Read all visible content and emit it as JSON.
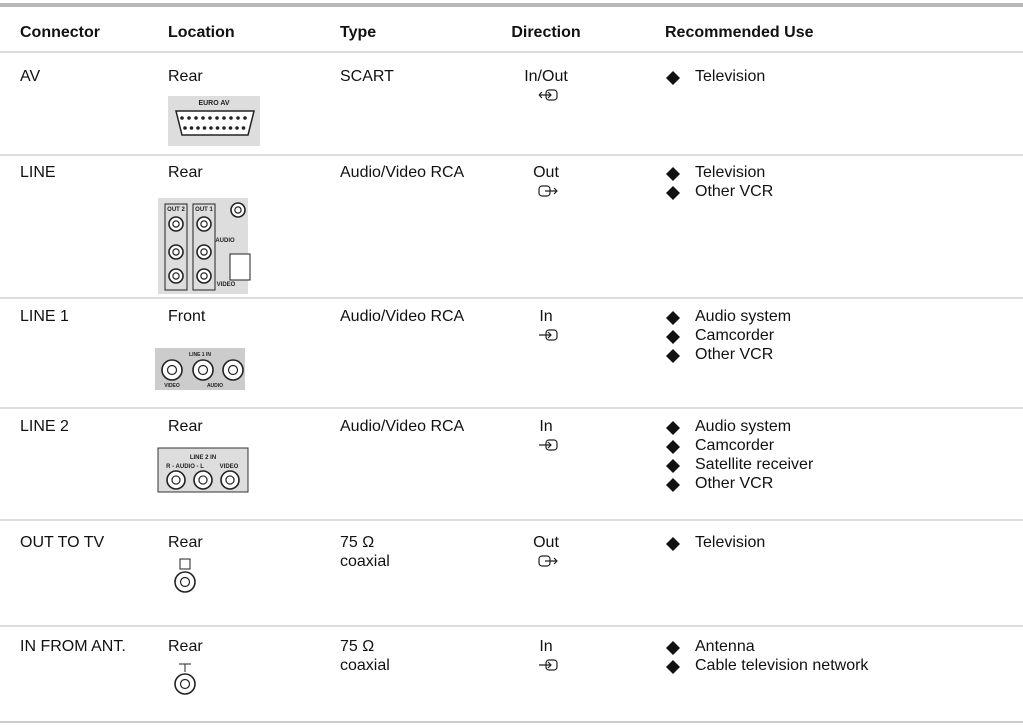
{
  "table": {
    "columns": [
      "Connector",
      "Location",
      "Type",
      "Direction",
      "Recommended Use"
    ],
    "rows": [
      {
        "connector": "AV",
        "location": "Rear",
        "type": [
          "SCART"
        ],
        "direction": "In/Out",
        "uses": [
          "Television"
        ],
        "figure_labels": [
          "EURO AV"
        ]
      },
      {
        "connector": "LINE",
        "location": "Rear",
        "type": [
          "Audio/Video RCA"
        ],
        "direction": "Out",
        "uses": [
          "Television",
          "Other VCR"
        ],
        "figure_labels": [
          "OUT 2",
          "OUT 1",
          "AUDIO",
          "VIDEO"
        ]
      },
      {
        "connector": "LINE 1",
        "location": "Front",
        "type": [
          "Audio/Video RCA"
        ],
        "direction": "In",
        "uses": [
          "Audio system",
          "Camcorder",
          "Other VCR"
        ],
        "figure_labels": [
          "LINE 1 IN",
          "VIDEO",
          "AUDIO"
        ]
      },
      {
        "connector": "LINE 2",
        "location": "Rear",
        "type": [
          "Audio/Video RCA"
        ],
        "direction": "In",
        "uses": [
          "Audio system",
          "Camcorder",
          "Satellite receiver",
          "Other VCR"
        ],
        "figure_labels": [
          "LINE 2 IN",
          "R - AUDIO - L",
          "VIDEO"
        ]
      },
      {
        "connector": "OUT TO TV",
        "location": "Rear",
        "type": [
          "75 Ω",
          "coaxial"
        ],
        "direction": "Out",
        "uses": [
          "Television"
        ],
        "figure_labels": []
      },
      {
        "connector": "IN FROM ANT.",
        "location": "Rear",
        "type": [
          "75 Ω",
          "coaxial"
        ],
        "direction": "In",
        "uses": [
          "Antenna",
          "Cable television network"
        ],
        "figure_labels": []
      }
    ]
  }
}
